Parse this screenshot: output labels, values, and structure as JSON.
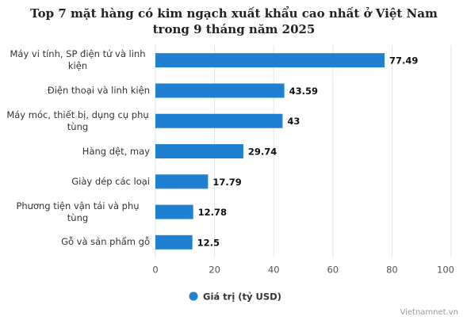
{
  "chart_data": {
    "type": "bar",
    "orientation": "horizontal",
    "title": "Top 7 mặt hàng có kim ngạch xuất khẩu cao nhất ở Việt Nam trong 9 tháng năm 2025",
    "categories": [
      "Máy vi tính, SP điện tử và linh kiện",
      "Điện thoại và linh kiện",
      "Máy móc, thiết bị, dụng cụ phụ tùng",
      "Hàng dệt, may",
      "Giày dép các loại",
      "Phương tiện vận tải và phụ tùng",
      "Gỗ và sản phẩm gỗ"
    ],
    "series": [
      {
        "name": "Giá trị (tỷ USD)",
        "color": "#1f7fd0",
        "values": [
          77.49,
          43.59,
          43,
          29.74,
          17.79,
          12.78,
          12.5
        ]
      }
    ],
    "xlim": [
      0,
      100
    ],
    "xticks": [
      0,
      20,
      40,
      60,
      80,
      100
    ],
    "grid": true,
    "source": "Vietnamnet.vn"
  }
}
